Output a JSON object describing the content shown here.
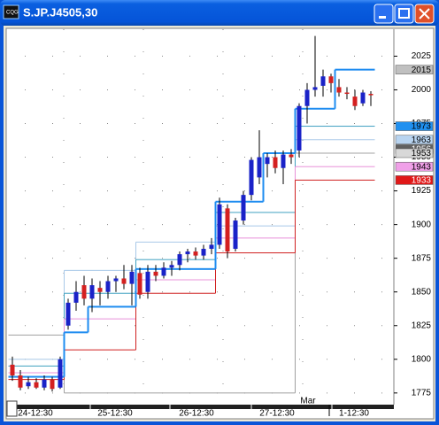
{
  "window": {
    "title": "S.JP.J4505,30"
  },
  "chart_data": {
    "type": "candlestick",
    "ylim": [
      1767,
      2045
    ],
    "yticks": [
      1775,
      1800,
      1825,
      1850,
      1875,
      1900,
      1925,
      1950,
      1975,
      2000,
      2025
    ],
    "xtick_labels": [
      "24-12:30",
      "25-12:30",
      "26-12:30",
      "27-12:30",
      "1-12:30"
    ],
    "annotation": "Mar",
    "up_color": "#1a22c8",
    "down_color": "#d42020",
    "ohlc": [
      [
        1796,
        1802,
        1784,
        1788
      ],
      [
        1788,
        1792,
        1777,
        1779
      ],
      [
        1780,
        1787,
        1778,
        1783
      ],
      [
        1783,
        1786,
        1778,
        1779
      ],
      [
        1779,
        1788,
        1777,
        1785
      ],
      [
        1785,
        1787,
        1776,
        1778
      ],
      [
        1779,
        1802,
        1778,
        1800
      ],
      [
        1825,
        1845,
        1822,
        1842
      ],
      [
        1842,
        1858,
        1836,
        1850
      ],
      [
        1855,
        1862,
        1840,
        1845
      ],
      [
        1845,
        1860,
        1835,
        1855
      ],
      [
        1853,
        1858,
        1840,
        1850
      ],
      [
        1850,
        1862,
        1845,
        1858
      ],
      [
        1858,
        1862,
        1850,
        1860
      ],
      [
        1860,
        1870,
        1852,
        1856
      ],
      [
        1856,
        1870,
        1840,
        1865
      ],
      [
        1864,
        1868,
        1845,
        1848
      ],
      [
        1850,
        1870,
        1845,
        1865
      ],
      [
        1865,
        1870,
        1858,
        1862
      ],
      [
        1862,
        1872,
        1860,
        1868
      ],
      [
        1868,
        1873,
        1862,
        1870
      ],
      [
        1870,
        1880,
        1866,
        1878
      ],
      [
        1878,
        1882,
        1872,
        1880
      ],
      [
        1880,
        1883,
        1874,
        1877
      ],
      [
        1877,
        1885,
        1874,
        1882
      ],
      [
        1882,
        1890,
        1878,
        1885
      ],
      [
        1885,
        1920,
        1882,
        1915
      ],
      [
        1912,
        1915,
        1875,
        1880
      ],
      [
        1882,
        1905,
        1880,
        1903
      ],
      [
        1903,
        1925,
        1900,
        1922
      ],
      [
        1922,
        1950,
        1918,
        1948
      ],
      [
        1935,
        1970,
        1930,
        1950
      ],
      [
        1945,
        1953,
        1935,
        1950
      ],
      [
        1950,
        1955,
        1938,
        1942
      ],
      [
        1942,
        1955,
        1930,
        1952
      ],
      [
        1952,
        1956,
        1945,
        1950
      ],
      [
        1955,
        1990,
        1950,
        1988
      ],
      [
        1988,
        2005,
        1975,
        2000
      ],
      [
        2000,
        2040,
        1995,
        2002
      ],
      [
        2003,
        2015,
        1995,
        2010
      ],
      [
        2010,
        2012,
        1998,
        2005
      ],
      [
        2002,
        2008,
        1995,
        1998
      ],
      [
        1998,
        2002,
        1993,
        1997
      ],
      [
        1995,
        2000,
        1985,
        1988
      ],
      [
        1990,
        2000,
        1988,
        1998
      ],
      [
        1997,
        1999,
        1988,
        1996
      ]
    ],
    "series": [
      {
        "color": "#a0a0a0",
        "values": [
          1818,
          1818,
          1818,
          1818,
          1818,
          1818,
          1818,
          1775,
          1775,
          1775,
          1775,
          1775,
          1775,
          1775,
          1775,
          1775,
          1775,
          1775,
          1775,
          1775,
          1775,
          1775,
          1775,
          1775,
          1775,
          1775,
          1775,
          1775,
          1775,
          1775,
          1775,
          1775,
          1775,
          1775,
          1775,
          1775,
          1953,
          1953,
          1953,
          1953,
          1953,
          1953,
          1953,
          1953,
          1953,
          1953
        ]
      },
      {
        "color": "#a8c8e8",
        "values": [
          1800,
          1800,
          1800,
          1800,
          1800,
          1800,
          1800,
          1866,
          1866,
          1866,
          1866,
          1866,
          1866,
          1866,
          1866,
          1866,
          1887,
          1887,
          1887,
          1887,
          1887,
          1887,
          1887,
          1887,
          1887,
          1887,
          1899,
          1899,
          1899,
          1899,
          1899,
          1899,
          1899,
          1899,
          1899,
          1899,
          1963,
          1963,
          1963,
          1963,
          1963,
          1963,
          1963,
          1963,
          1963,
          1963
        ]
      },
      {
        "color": "#3fa0c0",
        "values": [
          1795,
          1795,
          1795,
          1795,
          1795,
          1795,
          1795,
          1849,
          1849,
          1849,
          1849,
          1849,
          1849,
          1849,
          1849,
          1849,
          1874,
          1874,
          1874,
          1874,
          1874,
          1874,
          1874,
          1874,
          1874,
          1874,
          1909,
          1909,
          1909,
          1909,
          1909,
          1909,
          1909,
          1909,
          1909,
          1909,
          1973,
          1973,
          1973,
          1973,
          1973,
          1973,
          1973,
          1973,
          1973,
          1973
        ]
      },
      {
        "color": "#e890d8",
        "values": [
          1790,
          1790,
          1790,
          1790,
          1790,
          1790,
          1790,
          1830,
          1830,
          1830,
          1830,
          1830,
          1830,
          1830,
          1830,
          1830,
          1859,
          1859,
          1859,
          1859,
          1859,
          1859,
          1859,
          1859,
          1859,
          1859,
          1890,
          1890,
          1890,
          1890,
          1890,
          1890,
          1890,
          1890,
          1890,
          1890,
          1943,
          1943,
          1943,
          1943,
          1943,
          1943,
          1943,
          1943,
          1943,
          1943
        ]
      },
      {
        "color": "#d02020",
        "values": [
          1785,
          1785,
          1785,
          1785,
          1785,
          1785,
          1785,
          1807,
          1807,
          1807,
          1807,
          1807,
          1807,
          1807,
          1807,
          1807,
          1849,
          1849,
          1849,
          1849,
          1849,
          1849,
          1849,
          1849,
          1849,
          1849,
          1879,
          1879,
          1879,
          1879,
          1879,
          1879,
          1879,
          1879,
          1879,
          1879,
          1933,
          1933,
          1933,
          1933,
          1933,
          1933,
          1933,
          1933,
          1933,
          1933
        ]
      },
      {
        "color": "#1e8cf0",
        "width": 2,
        "values": [
          1787,
          1787,
          1787,
          1787,
          1787,
          1787,
          1787,
          1820,
          1820,
          1820,
          1839,
          1839,
          1839,
          1839,
          1839,
          1839,
          1867,
          1867,
          1867,
          1867,
          1867,
          1867,
          1867,
          1867,
          1867,
          1867,
          1917,
          1917,
          1917,
          1917,
          1917,
          1917,
          1953,
          1953,
          1953,
          1953,
          1986,
          1986,
          1986,
          1986,
          1986,
          2015,
          2015,
          2015,
          2015,
          2015
        ]
      }
    ],
    "price_labels": [
      {
        "value": 2015,
        "color": "#c0c0c0",
        "text_color": "#000000"
      },
      {
        "value": 1973,
        "color": "#2090f0",
        "text_color": "#000000"
      },
      {
        "value": 1963,
        "color": "#b8d4f0",
        "text_color": "#000000"
      },
      {
        "value": 1956,
        "color": "#606060",
        "text_color": "#ffffff"
      },
      {
        "value": 1953,
        "color": "#d8d8d8",
        "text_color": "#000000"
      },
      {
        "value": 1943,
        "color": "#f0a0e8",
        "text_color": "#000000"
      },
      {
        "value": 1933,
        "color": "#e01818",
        "text_color": "#ffffff"
      }
    ]
  }
}
